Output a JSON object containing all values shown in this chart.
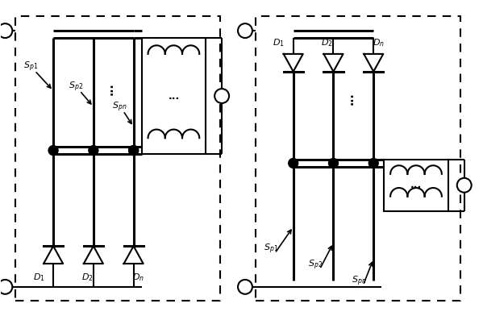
{
  "fig_width": 5.99,
  "fig_height": 3.92,
  "bg_color": "#ffffff",
  "line_color": "#000000",
  "lw": 1.5,
  "lw_thick": 2.2,
  "dash_pattern": [
    5,
    4
  ]
}
